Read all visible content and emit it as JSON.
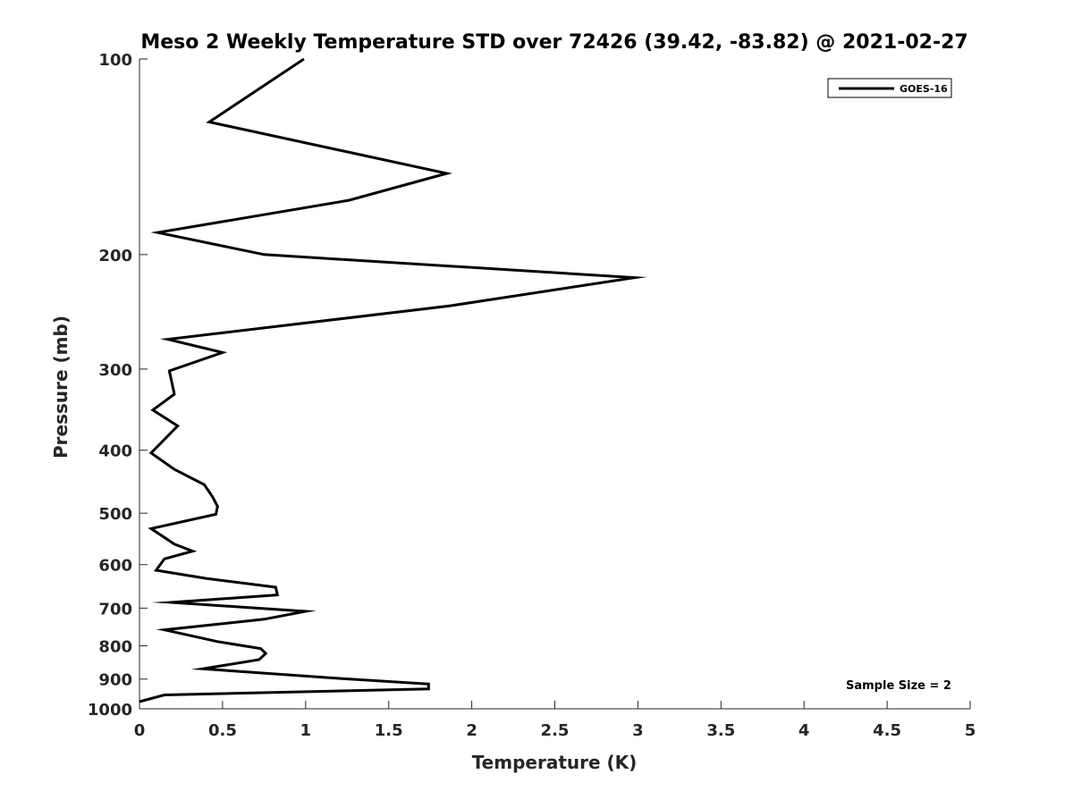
{
  "chart_data": {
    "type": "line",
    "title": "Meso 2 Weekly Temperature STD over 72426 (39.42, -83.82) @ 2021-02-27",
    "xlabel": "Temperature (K)",
    "ylabel": "Pressure (mb)",
    "xlim": [
      0,
      5
    ],
    "ylim": [
      100,
      1000
    ],
    "y_scale": "log",
    "y_reversed": true,
    "x_ticks": [
      0,
      0.5,
      1,
      1.5,
      2,
      2.5,
      3,
      3.5,
      4,
      4.5,
      5
    ],
    "x_tick_labels": [
      "0",
      "0.5",
      "1",
      "1.5",
      "2",
      "2.5",
      "3",
      "3.5",
      "4",
      "4.5",
      "5"
    ],
    "y_ticks": [
      100,
      200,
      300,
      400,
      500,
      600,
      700,
      800,
      900,
      1000
    ],
    "y_tick_labels": [
      "100",
      "200",
      "300",
      "400",
      "500",
      "600",
      "700",
      "800",
      "900",
      "1000"
    ],
    "grid": false,
    "legend_position": "top-right",
    "series": [
      {
        "name": "GOES-16",
        "color": "#000000",
        "points": [
          [
            0.99,
            100
          ],
          [
            0.42,
            125
          ],
          [
            1.85,
            150
          ],
          [
            1.26,
            165
          ],
          [
            0.11,
            185
          ],
          [
            0.75,
            200
          ],
          [
            2.98,
            217
          ],
          [
            1.86,
            240
          ],
          [
            0.17,
            270
          ],
          [
            0.5,
            283
          ],
          [
            0.18,
            302
          ],
          [
            0.21,
            328
          ],
          [
            0.08,
            347
          ],
          [
            0.23,
            367
          ],
          [
            0.07,
            404
          ],
          [
            0.21,
            428
          ],
          [
            0.39,
            452
          ],
          [
            0.44,
            472
          ],
          [
            0.47,
            488
          ],
          [
            0.46,
            502
          ],
          [
            0.07,
            528
          ],
          [
            0.21,
            558
          ],
          [
            0.32,
            572
          ],
          [
            0.15,
            588
          ],
          [
            0.1,
            612
          ],
          [
            0.4,
            630
          ],
          [
            0.82,
            650
          ],
          [
            0.83,
            668
          ],
          [
            0.19,
            686
          ],
          [
            1.0,
            708
          ],
          [
            0.75,
            728
          ],
          [
            0.15,
            756
          ],
          [
            0.47,
            788
          ],
          [
            0.73,
            808
          ],
          [
            0.76,
            822
          ],
          [
            0.72,
            840
          ],
          [
            0.38,
            868
          ],
          [
            1.2,
            898
          ],
          [
            1.74,
            916
          ],
          [
            1.74,
            932
          ],
          [
            0.15,
            952
          ],
          [
            0.0,
            975
          ]
        ]
      }
    ],
    "annotations": [
      "Sample Size = 2"
    ]
  }
}
